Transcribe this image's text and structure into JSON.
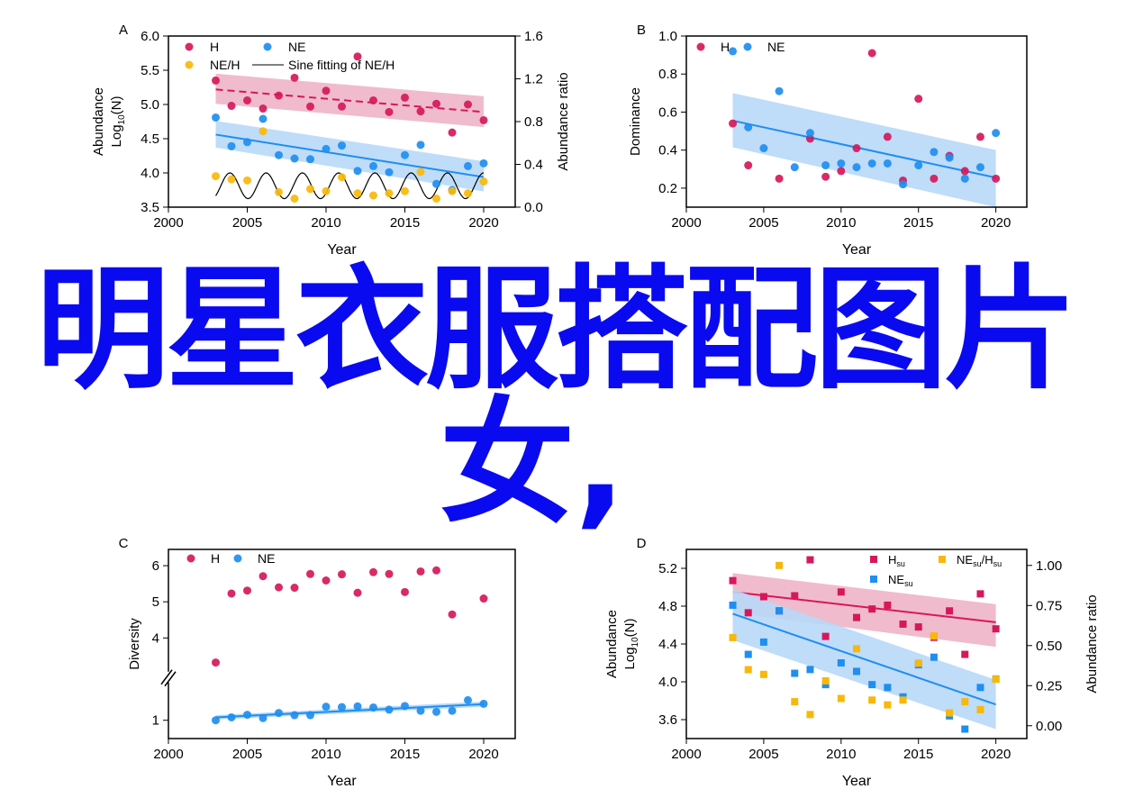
{
  "overlay_text": {
    "line1": "明星衣服搭配图片",
    "line2": "女,"
  },
  "colors": {
    "H": "#d6185a",
    "NE": "#1e8ef0",
    "ratio": "#f8b80a",
    "H_band": "#eeb4c8",
    "NE_band": "#b8d8f8",
    "overlay": "#0a0af0"
  },
  "chart_data": [
    {
      "panel": "A",
      "type": "scatter",
      "xlabel": "Year",
      "ylabel": "Abundance Log10(N)",
      "ylabel_lines": [
        "Abundance",
        "Log",
        "10",
        "(N)"
      ],
      "y2label": "Abundance ratio",
      "xlim": [
        2000,
        2022
      ],
      "ylim": [
        3.5,
        6.0
      ],
      "y2lim": [
        0,
        1.6
      ],
      "xticks": [
        2000,
        2005,
        2010,
        2015,
        2020
      ],
      "yticks": [
        "3.5",
        "4.0",
        "4.5",
        "5.0",
        "5.5",
        "6.0"
      ],
      "y2ticks": [
        "0.0",
        "0.4",
        "0.8",
        "1.2",
        "1.6"
      ],
      "legend": [
        "H",
        "NE",
        "NE/H",
        "Sine fitting of NE/H"
      ],
      "x": [
        2003,
        2004,
        2005,
        2006,
        2007,
        2008,
        2009,
        2010,
        2011,
        2012,
        2013,
        2014,
        2015,
        2016,
        2017,
        2018,
        2019,
        2020
      ],
      "series": [
        {
          "name": "H",
          "axis": "left",
          "values": [
            5.35,
            4.98,
            5.06,
            4.94,
            5.13,
            5.39,
            4.97,
            5.2,
            4.97,
            5.7,
            5.06,
            4.89,
            5.1,
            4.9,
            5.01,
            4.59,
            5.0,
            4.77
          ],
          "fit": [
            5.22,
            4.89
          ],
          "band": [
            [
              5.01,
              5.45
            ],
            [
              4.67,
              5.12
            ]
          ],
          "dashed": true
        },
        {
          "name": "NE",
          "axis": "left",
          "values": [
            4.81,
            4.39,
            4.45,
            4.79,
            4.26,
            4.21,
            4.2,
            4.35,
            4.4,
            4.03,
            4.1,
            4.01,
            4.26,
            4.41,
            3.84,
            3.75,
            4.1,
            4.14
          ],
          "fit": [
            4.56,
            3.94
          ],
          "band": [
            [
              4.37,
              4.76
            ],
            [
              3.73,
              4.17
            ]
          ]
        },
        {
          "name": "NE/H",
          "axis": "right",
          "values": [
            0.29,
            0.26,
            0.25,
            0.71,
            0.14,
            0.08,
            0.17,
            0.15,
            0.28,
            0.13,
            0.11,
            0.13,
            0.15,
            0.33,
            0.08,
            0.15,
            0.13,
            0.24
          ]
        }
      ],
      "sine": {
        "center": 0.2,
        "amplitude": 0.12,
        "period": 2.3,
        "peak_at": 2003.9
      }
    },
    {
      "panel": "B",
      "type": "scatter",
      "xlabel": "Year",
      "ylabel": "Dominance",
      "xlim": [
        2000,
        2022
      ],
      "ylim": [
        0.1,
        1.0
      ],
      "xticks": [
        2000,
        2005,
        2010,
        2015,
        2020
      ],
      "yticks": [
        "0.2",
        "0.4",
        "0.6",
        "0.8",
        "1.0"
      ],
      "legend": [
        "H",
        "NE"
      ],
      "series": [
        {
          "name": "H",
          "x": [
            2003,
            2004,
            2006,
            2008,
            2009,
            2010,
            2011,
            2012,
            2013,
            2014,
            2015,
            2016,
            2017,
            2018,
            2019,
            2020
          ],
          "values": [
            0.54,
            0.32,
            0.25,
            0.46,
            0.26,
            0.29,
            0.41,
            0.91,
            0.47,
            0.24,
            0.67,
            0.25,
            0.37,
            0.29,
            0.47,
            0.25
          ]
        },
        {
          "name": "NE",
          "x": [
            2003,
            2004,
            2005,
            2006,
            2007,
            2008,
            2009,
            2010,
            2011,
            2012,
            2013,
            2014,
            2015,
            2016,
            2017,
            2018,
            2019,
            2020
          ],
          "values": [
            0.92,
            0.52,
            0.41,
            0.71,
            0.31,
            0.49,
            0.32,
            0.33,
            0.31,
            0.33,
            0.33,
            0.22,
            0.32,
            0.39,
            0.36,
            0.25,
            0.31,
            0.49
          ],
          "fit": [
            0.555,
            0.255
          ],
          "band": [
            [
              0.415,
              0.7
            ],
            [
              0.1,
              0.4
            ]
          ]
        }
      ]
    },
    {
      "panel": "C",
      "type": "scatter",
      "xlabel": "Year",
      "ylabel": "Diversity",
      "xlim": [
        2000,
        2022
      ],
      "broken_axis": true,
      "xticks": [
        2000,
        2005,
        2010,
        2015,
        2020
      ],
      "yticks": [
        "1",
        "4",
        "5",
        "6"
      ],
      "legend": [
        "H",
        "NE"
      ],
      "x": [
        2003,
        2004,
        2005,
        2006,
        2007,
        2008,
        2009,
        2010,
        2011,
        2012,
        2013,
        2014,
        2015,
        2016,
        2017,
        2018,
        2020
      ],
      "series": [
        {
          "name": "H",
          "values": [
            3.32,
            5.23,
            5.31,
            5.71,
            5.4,
            5.39,
            5.77,
            5.59,
            5.76,
            5.25,
            5.82,
            5.77,
            5.27,
            5.84,
            5.87,
            4.65,
            5.09
          ]
        },
        {
          "name": "NE",
          "x": [
            2003,
            2004,
            2005,
            2006,
            2007,
            2008,
            2009,
            2010,
            2011,
            2012,
            2013,
            2014,
            2015,
            2016,
            2017,
            2018,
            2019,
            2020
          ],
          "values": [
            1.0,
            1.08,
            1.15,
            1.06,
            1.2,
            1.14,
            1.14,
            1.37,
            1.36,
            1.38,
            1.35,
            1.29,
            1.39,
            1.26,
            1.23,
            1.26,
            1.55,
            1.45
          ],
          "fit": [
            1.08,
            1.44
          ],
          "band": [
            [
              1.02,
              1.14
            ],
            [
              1.37,
              1.51
            ]
          ]
        }
      ]
    },
    {
      "panel": "D",
      "type": "scatter",
      "xlabel": "Year",
      "ylabel": "Abundance Log10(N)",
      "ylabel_lines": [
        "Abundance",
        "Log",
        "10",
        "(N)"
      ],
      "y2label": "Abundance ratio",
      "xlim": [
        2000,
        2022
      ],
      "ylim": [
        3.4,
        5.4
      ],
      "y2lim": [
        -0.08,
        1.1
      ],
      "xticks": [
        2000,
        2005,
        2010,
        2015,
        2020
      ],
      "yticks": [
        "3.6",
        "4.0",
        "4.4",
        "4.8",
        "5.2"
      ],
      "y2ticks": [
        "0.00",
        "0.25",
        "0.50",
        "0.75",
        "1.00"
      ],
      "legend": [
        {
          "main": "H",
          "sub": "su"
        },
        {
          "main": "NE",
          "sub": "su"
        },
        {
          "main": "NE",
          "sub": "su",
          "main2": "/H",
          "sub2": "su"
        }
      ],
      "x": [
        2003,
        2004,
        2005,
        2006,
        2007,
        2008,
        2009,
        2010,
        2011,
        2012,
        2013,
        2014,
        2015,
        2016,
        2017,
        2018,
        2019,
        2020
      ],
      "series": [
        {
          "name": "H_su",
          "axis": "left",
          "values": [
            5.07,
            4.73,
            4.9,
            4.75,
            4.91,
            5.29,
            4.48,
            4.95,
            4.68,
            4.77,
            4.81,
            4.61,
            4.58,
            4.47,
            4.75,
            4.29,
            4.93,
            4.56
          ],
          "fit": [
            4.95,
            4.63
          ],
          "band": [
            [
              4.73,
              5.15
            ],
            [
              4.37,
              4.82
            ]
          ]
        },
        {
          "name": "NE_su",
          "axis": "left",
          "values": [
            4.81,
            4.29,
            4.42,
            4.75,
            4.09,
            4.13,
            3.97,
            4.2,
            4.11,
            3.97,
            3.94,
            3.84,
            4.18,
            4.26,
            3.64,
            3.5,
            3.94,
            4.03
          ],
          "fit": [
            4.72,
            3.76
          ],
          "band": [
            [
              4.44,
              4.98
            ],
            [
              3.5,
              4.02
            ]
          ]
        },
        {
          "name": "NE_su/H_su",
          "axis": "right",
          "values": [
            0.55,
            0.35,
            0.32,
            1.0,
            0.15,
            0.07,
            0.28,
            0.17,
            0.48,
            0.16,
            0.13,
            0.16,
            0.39,
            0.56,
            0.08,
            0.15,
            0.1,
            0.29
          ]
        }
      ]
    }
  ]
}
